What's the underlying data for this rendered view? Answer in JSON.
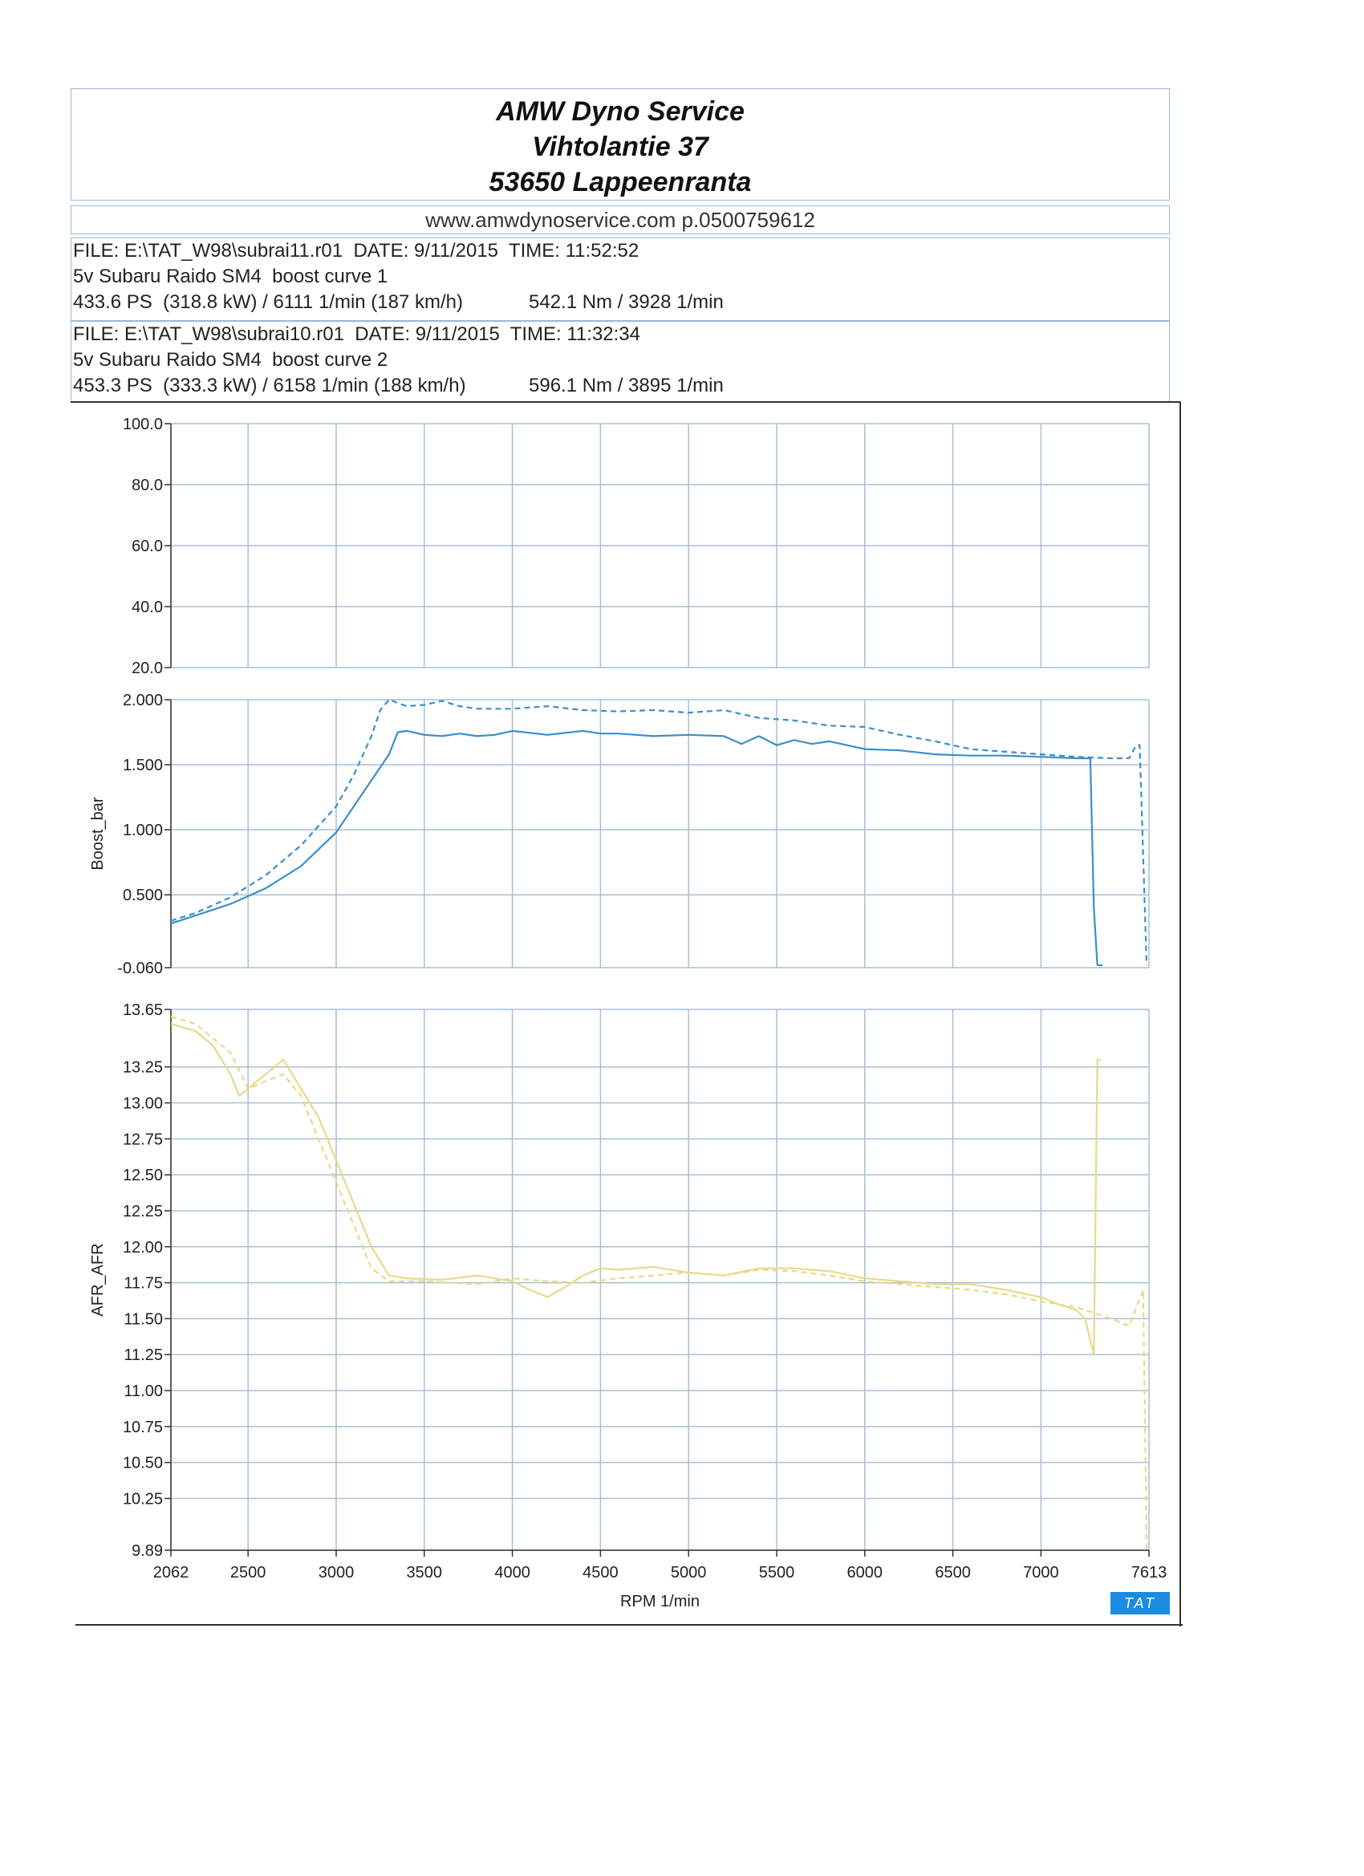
{
  "header": {
    "line1": "AMW Dyno Service",
    "line2": "Vihtolantie 37",
    "line3": "53650 Lappeenranta",
    "web": "www.amwdynoservice.com p.0500759612"
  },
  "runs": [
    {
      "file_line": "FILE: E:\\TAT_W98\\subrai11.r01  DATE: 9/11/2015  TIME: 11:52:52",
      "desc": "5v Subaru Raido SM4  boost curve 1",
      "power": "433.6 PS  (318.8 kW) / 6111 1/min (187 km/h)",
      "torque": "542.1 Nm / 3928 1/min"
    },
    {
      "file_line": "FILE: E:\\TAT_W98\\subrai10.r01  DATE: 9/11/2015  TIME: 11:32:34",
      "desc": "5v Subaru Raido SM4  boost curve 2",
      "power": "453.3 PS  (333.3 kW) / 6158 1/min (188 km/h)",
      "torque": "596.1 Nm / 3895 1/min"
    }
  ],
  "logo": "TAT",
  "chart_data": [
    {
      "type": "line",
      "panel": "top",
      "ylabel": "",
      "ylim": [
        20,
        100
      ],
      "ytick_labels": [
        "100.0",
        "80.0",
        "60.0",
        "40.0",
        "20.0"
      ],
      "grid": true,
      "series": []
    },
    {
      "type": "line",
      "panel": "boost",
      "ylabel": "Boost_bar",
      "ylim": [
        -0.06,
        2.0
      ],
      "ytick_labels": [
        "2.000",
        "1.500",
        "1.000",
        "0.500",
        "-0.060"
      ],
      "grid": true,
      "color": "#3a8fc8",
      "series": [
        {
          "style": "solid",
          "x": [
            2062,
            2200,
            2400,
            2600,
            2800,
            3000,
            3100,
            3200,
            3300,
            3350,
            3400,
            3500,
            3600,
            3700,
            3800,
            3900,
            4000,
            4200,
            4400,
            4500,
            4600,
            4800,
            5000,
            5200,
            5300,
            5400,
            5500,
            5600,
            5700,
            5800,
            6000,
            6200,
            6400,
            6600,
            6800,
            7000,
            7200,
            7280,
            7300,
            7320,
            7350
          ],
          "y": [
            0.28,
            0.34,
            0.43,
            0.55,
            0.72,
            0.98,
            1.18,
            1.38,
            1.58,
            1.75,
            1.76,
            1.73,
            1.72,
            1.74,
            1.72,
            1.73,
            1.76,
            1.73,
            1.76,
            1.74,
            1.74,
            1.72,
            1.73,
            1.72,
            1.66,
            1.72,
            1.65,
            1.69,
            1.66,
            1.68,
            1.62,
            1.61,
            1.58,
            1.57,
            1.57,
            1.56,
            1.55,
            1.55,
            0.4,
            -0.04,
            -0.04
          ]
        },
        {
          "style": "dashed",
          "x": [
            2062,
            2200,
            2400,
            2600,
            2800,
            3000,
            3100,
            3200,
            3250,
            3300,
            3400,
            3500,
            3600,
            3700,
            3800,
            4000,
            4200,
            4400,
            4600,
            4800,
            5000,
            5200,
            5400,
            5600,
            5800,
            6000,
            6200,
            6400,
            6600,
            6800,
            7000,
            7200,
            7400,
            7500,
            7540,
            7560,
            7600
          ],
          "y": [
            0.3,
            0.36,
            0.48,
            0.65,
            0.88,
            1.18,
            1.42,
            1.72,
            1.92,
            2.0,
            1.95,
            1.96,
            1.99,
            1.95,
            1.93,
            1.93,
            1.95,
            1.92,
            1.91,
            1.92,
            1.9,
            1.92,
            1.86,
            1.84,
            1.8,
            1.79,
            1.73,
            1.68,
            1.62,
            1.6,
            1.58,
            1.56,
            1.55,
            1.55,
            1.65,
            1.65,
            -0.04
          ]
        }
      ]
    },
    {
      "type": "line",
      "panel": "afr",
      "ylabel": "AFR_AFR",
      "xlabel": "RPM 1/min",
      "xlim": [
        2062,
        7613
      ],
      "ylim": [
        9.89,
        13.65
      ],
      "xtick_labels": [
        "2062",
        "2500",
        "3000",
        "3500",
        "4000",
        "4500",
        "5000",
        "5500",
        "6000",
        "6500",
        "7000",
        "7613"
      ],
      "ytick_labels": [
        "13.65",
        "13.25",
        "13.00",
        "12.75",
        "12.50",
        "12.25",
        "12.00",
        "11.75",
        "11.50",
        "11.25",
        "11.00",
        "10.75",
        "10.50",
        "10.25",
        "9.89"
      ],
      "grid": true,
      "color": "#e8d98a",
      "series": [
        {
          "style": "solid",
          "x": [
            2062,
            2200,
            2300,
            2400,
            2450,
            2500,
            2600,
            2700,
            2800,
            2900,
            3000,
            3100,
            3200,
            3300,
            3400,
            3600,
            3800,
            4000,
            4100,
            4200,
            4300,
            4400,
            4500,
            4600,
            4800,
            5000,
            5200,
            5400,
            5600,
            5800,
            6000,
            6200,
            6400,
            6600,
            6800,
            7000,
            7100,
            7200,
            7250,
            7300,
            7320,
            7340
          ],
          "y": [
            13.55,
            13.5,
            13.4,
            13.2,
            13.05,
            13.1,
            13.2,
            13.3,
            13.1,
            12.9,
            12.6,
            12.3,
            12.0,
            11.8,
            11.78,
            11.77,
            11.8,
            11.76,
            11.7,
            11.65,
            11.72,
            11.8,
            11.85,
            11.84,
            11.86,
            11.82,
            11.8,
            11.85,
            11.85,
            11.83,
            11.78,
            11.76,
            11.74,
            11.74,
            11.7,
            11.65,
            11.6,
            11.56,
            11.5,
            11.25,
            13.3,
            13.3
          ]
        },
        {
          "style": "dashed",
          "x": [
            2062,
            2200,
            2400,
            2500,
            2600,
            2700,
            2800,
            2900,
            3000,
            3100,
            3200,
            3300,
            3500,
            3800,
            4000,
            4200,
            4400,
            4600,
            4800,
            5000,
            5200,
            5400,
            5600,
            5800,
            6000,
            6200,
            6400,
            6600,
            6800,
            7000,
            7200,
            7400,
            7500,
            7580,
            7600
          ],
          "y": [
            13.6,
            13.55,
            13.35,
            13.1,
            13.15,
            13.2,
            13.05,
            12.75,
            12.45,
            12.15,
            11.85,
            11.76,
            11.76,
            11.74,
            11.78,
            11.76,
            11.75,
            11.78,
            11.8,
            11.82,
            11.8,
            11.84,
            11.83,
            11.8,
            11.76,
            11.74,
            11.72,
            11.7,
            11.67,
            11.62,
            11.58,
            11.5,
            11.45,
            11.7,
            9.9
          ]
        }
      ]
    }
  ]
}
